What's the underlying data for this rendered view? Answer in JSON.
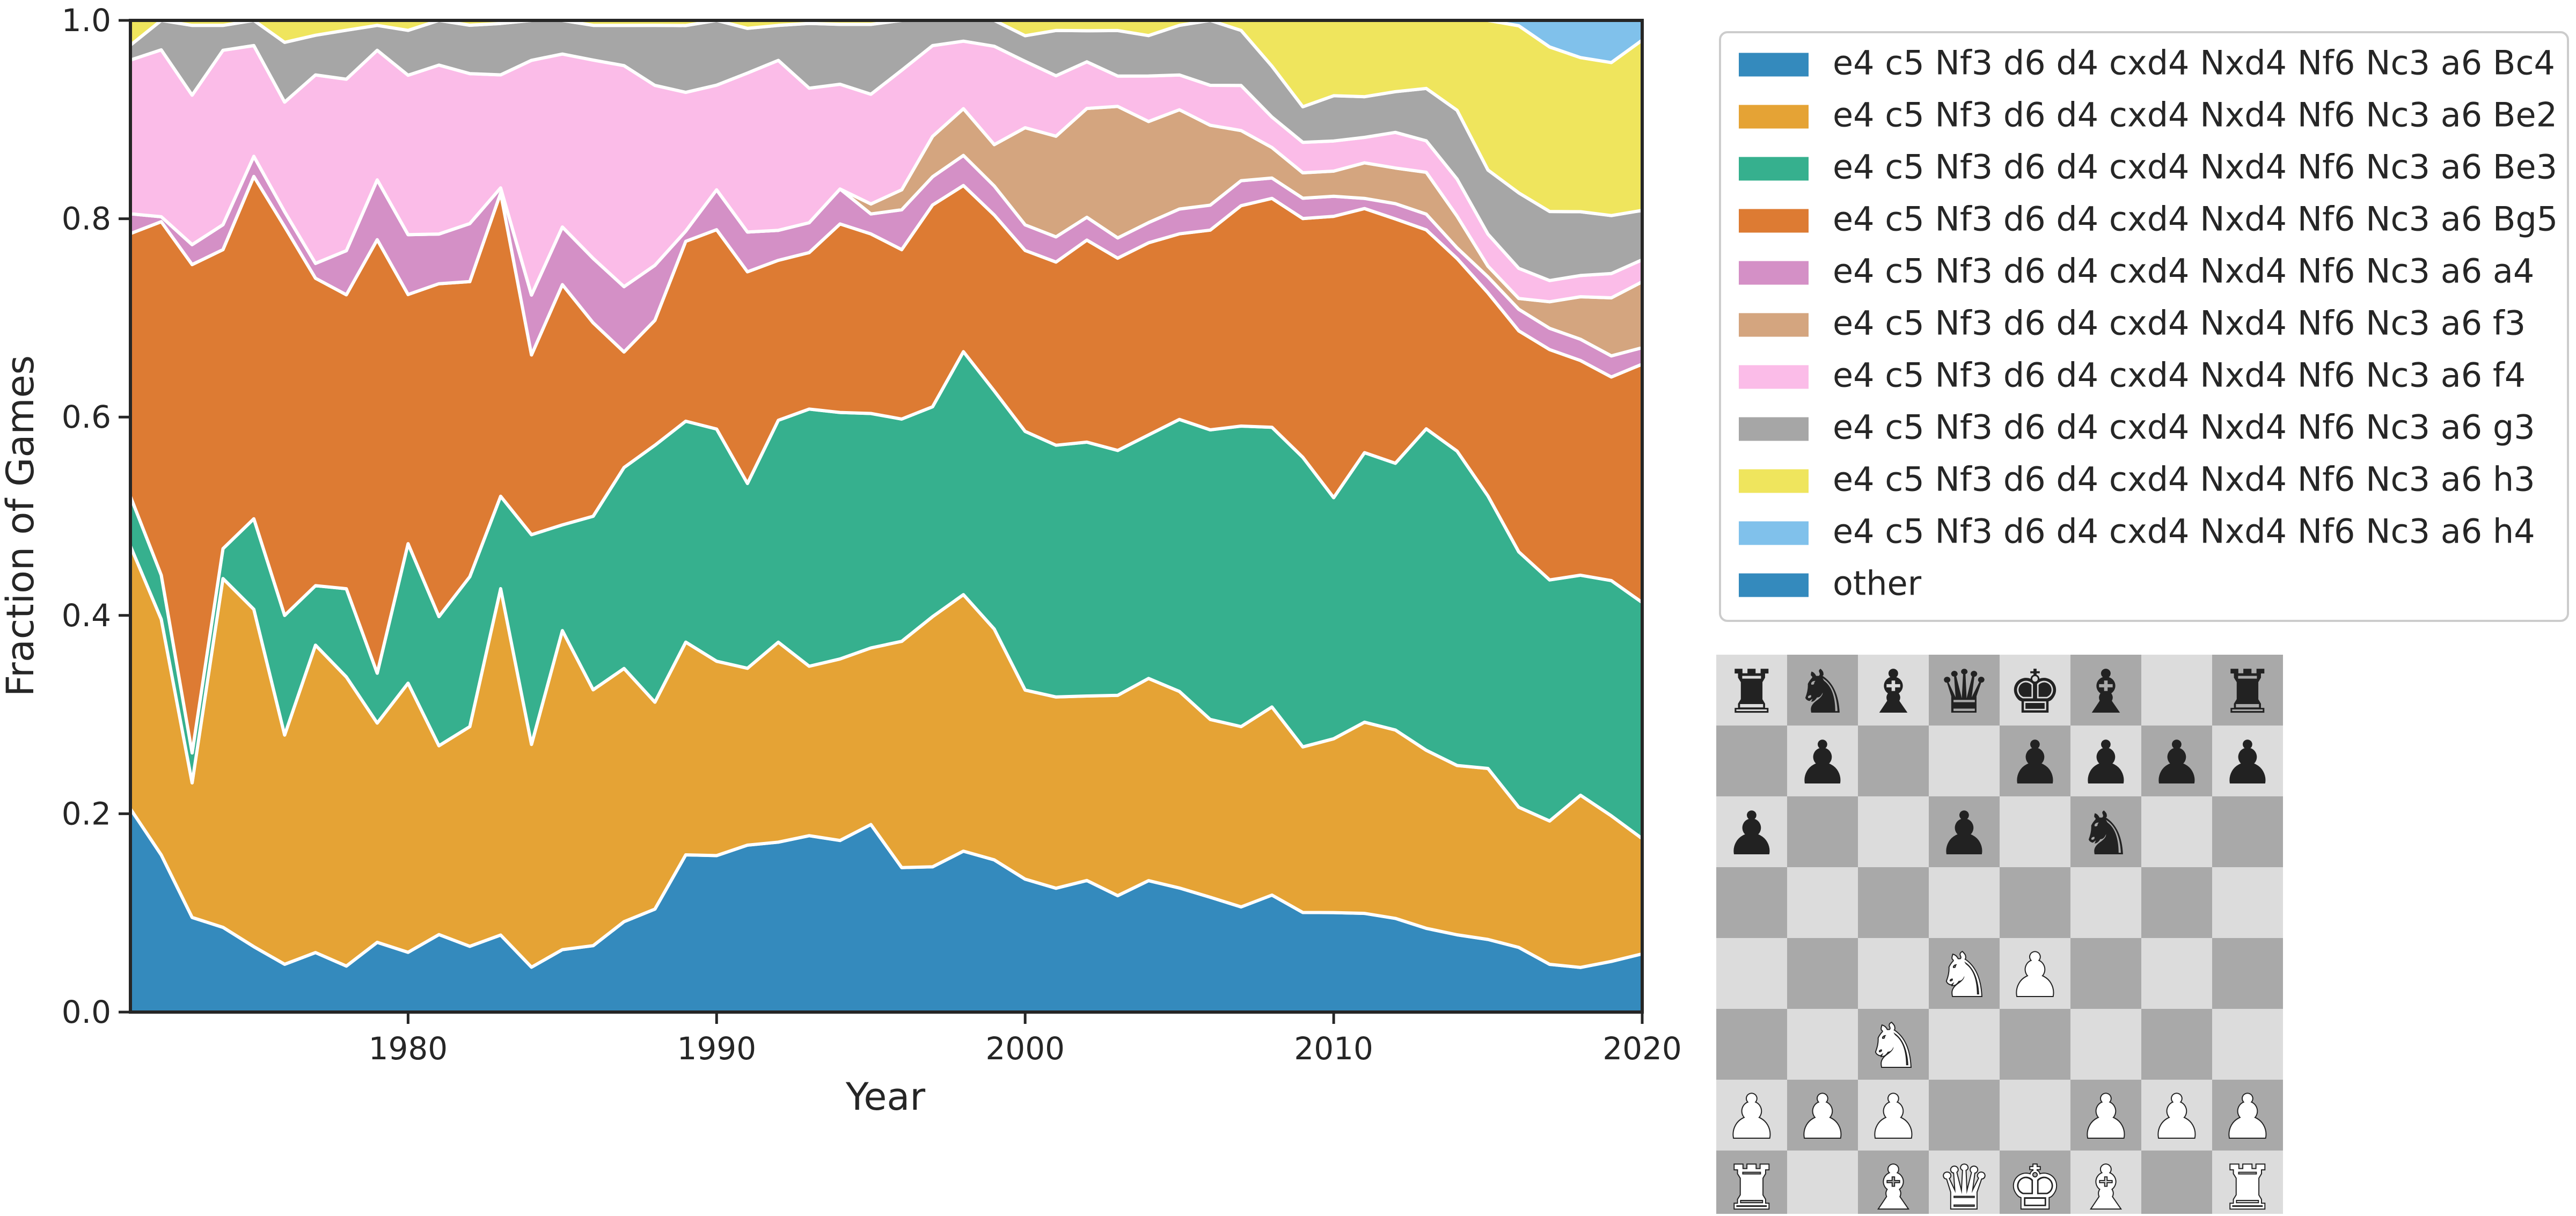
{
  "chart_data": {
    "type": "area",
    "stacked": true,
    "normalized": true,
    "xlabel": "Year",
    "ylabel": "Fraction of Games",
    "xlim": [
      1971,
      2020
    ],
    "ylim": [
      0,
      1
    ],
    "xticks": [
      1980,
      1990,
      2000,
      2010,
      2020
    ],
    "yticks": [
      "0.0",
      "0.2",
      "0.4",
      "0.6",
      "0.8",
      "1.0"
    ],
    "grid": false,
    "legend_position": "top-right, outside plot",
    "x": [
      1971,
      1972,
      1973,
      1974,
      1975,
      1976,
      1977,
      1978,
      1979,
      1980,
      1981,
      1982,
      1983,
      1984,
      1985,
      1986,
      1987,
      1988,
      1989,
      1990,
      1991,
      1992,
      1993,
      1994,
      1995,
      1996,
      1997,
      1998,
      1999,
      2000,
      2001,
      2002,
      2003,
      2004,
      2005,
      2006,
      2007,
      2008,
      2009,
      2010,
      2011,
      2012,
      2013,
      2014,
      2015,
      2016,
      2017,
      2018,
      2019,
      2020
    ],
    "series": [
      {
        "name": "e4 c5 Nf3 d6 d4 cxd4 Nxd4 Nf6 Nc3 a6 Bc4",
        "color": "#348abd",
        "values": [
          0.205,
          0.16,
          0.095,
          0.085,
          0.065,
          0.048,
          0.06,
          0.047,
          0.07,
          0.06,
          0.078,
          0.068,
          0.075,
          0.045,
          0.065,
          0.067,
          0.09,
          0.103,
          0.153,
          0.157,
          0.168,
          0.17,
          0.177,
          0.172,
          0.188,
          0.145,
          0.144,
          0.155,
          0.147,
          0.13,
          0.123,
          0.127,
          0.115,
          0.13,
          0.125,
          0.115,
          0.105,
          0.115,
          0.098,
          0.099,
          0.097,
          0.092,
          0.08,
          0.073,
          0.068,
          0.06,
          0.045,
          0.042,
          0.048,
          0.053
        ]
      },
      {
        "name": "e4 c5 Nf3 d6 d4 cxd4 Nxd4 Nf6 Nc3 a6 Be2",
        "color": "#e5a335",
        "values": [
          0.265,
          0.24,
          0.135,
          0.35,
          0.335,
          0.23,
          0.31,
          0.295,
          0.22,
          0.27,
          0.19,
          0.227,
          0.337,
          0.223,
          0.332,
          0.258,
          0.252,
          0.207,
          0.207,
          0.195,
          0.178,
          0.2,
          0.17,
          0.182,
          0.177,
          0.227,
          0.248,
          0.247,
          0.223,
          0.185,
          0.19,
          0.178,
          0.198,
          0.2,
          0.198,
          0.178,
          0.18,
          0.185,
          0.163,
          0.173,
          0.188,
          0.185,
          0.17,
          0.16,
          0.16,
          0.13,
          0.135,
          0.162,
          0.138,
          0.105
        ]
      },
      {
        "name": "e4 c5 Nf3 d6 d4 cxd4 Nxd4 Nf6 Nc3 a6 Be3",
        "color": "#36b08e",
        "values": [
          0.05,
          0.045,
          0.03,
          0.03,
          0.09,
          0.12,
          0.06,
          0.09,
          0.05,
          0.14,
          0.13,
          0.155,
          0.09,
          0.21,
          0.11,
          0.175,
          0.2,
          0.257,
          0.215,
          0.233,
          0.186,
          0.222,
          0.258,
          0.247,
          0.235,
          0.223,
          0.208,
          0.234,
          0.23,
          0.253,
          0.25,
          0.245,
          0.242,
          0.241,
          0.274,
          0.29,
          0.3,
          0.275,
          0.285,
          0.24,
          0.265,
          0.262,
          0.307,
          0.297,
          0.255,
          0.237,
          0.227,
          0.207,
          0.223,
          0.215
        ]
      },
      {
        "name": "e4 c5 Nf3 d6 d4 cxd4 Nxd4 Nf6 Nc3 a6 Bg5",
        "color": "#dd7b33",
        "values": [
          0.265,
          0.36,
          0.49,
          0.3,
          0.34,
          0.39,
          0.31,
          0.3,
          0.435,
          0.25,
          0.335,
          0.305,
          0.295,
          0.18,
          0.25,
          0.195,
          0.115,
          0.125,
          0.175,
          0.2,
          0.213,
          0.16,
          0.157,
          0.189,
          0.18,
          0.17,
          0.2,
          0.16,
          0.17,
          0.177,
          0.182,
          0.195,
          0.19,
          0.19,
          0.187,
          0.2,
          0.22,
          0.225,
          0.235,
          0.28,
          0.24,
          0.24,
          0.19,
          0.182,
          0.19,
          0.205,
          0.217,
          0.202,
          0.193,
          0.217
        ]
      },
      {
        "name": "e4 c5 Nf3 d6 d4 cxd4 Nxd4 Nf6 Nc3 a6 a4",
        "color": "#d490c6",
        "values": [
          0.02,
          0.005,
          0.02,
          0.025,
          0.02,
          0.015,
          0.015,
          0.045,
          0.06,
          0.06,
          0.05,
          0.06,
          0.005,
          0.06,
          0.06,
          0.065,
          0.065,
          0.055,
          0.01,
          0.04,
          0.04,
          0.03,
          0.03,
          0.035,
          0.02,
          0.04,
          0.028,
          0.029,
          0.028,
          0.025,
          0.025,
          0.022,
          0.02,
          0.02,
          0.025,
          0.025,
          0.025,
          0.02,
          0.02,
          0.02,
          0.01,
          0.015,
          0.015,
          0.01,
          0.015,
          0.02,
          0.02,
          0.02,
          0.02,
          0.015
        ]
      },
      {
        "name": "e4 c5 Nf3 d6 d4 cxd4 Nxd4 Nf6 Nc3 a6 f3",
        "color": "#d4a57f",
        "values": [
          0,
          0,
          0,
          0,
          0,
          0,
          0,
          0,
          0,
          0,
          0,
          0,
          0,
          0,
          0,
          0,
          0,
          0,
          0,
          0,
          0,
          0,
          0,
          0,
          0.01,
          0.02,
          0.04,
          0.045,
          0.04,
          0.095,
          0.1,
          0.105,
          0.13,
          0.1,
          0.1,
          0.08,
          0.05,
          0.03,
          0.025,
          0.025,
          0.035,
          0.035,
          0.04,
          0.03,
          0.01,
          0.01,
          0.025,
          0.04,
          0.055,
          0.06
        ]
      },
      {
        "name": "e4 c5 Nf3 d6 d4 cxd4 Nxd4 Nf6 Nc3 a6 f4",
        "color": "#fbbce8",
        "values": [
          0.155,
          0.17,
          0.15,
          0.175,
          0.11,
          0.11,
          0.19,
          0.175,
          0.13,
          0.16,
          0.17,
          0.155,
          0.11,
          0.235,
          0.18,
          0.2,
          0.22,
          0.18,
          0.135,
          0.105,
          0.16,
          0.17,
          0.135,
          0.105,
          0.11,
          0.12,
          0.09,
          0.065,
          0.095,
          0.065,
          0.06,
          0.045,
          0.03,
          0.045,
          0.035,
          0.04,
          0.045,
          0.03,
          0.03,
          0.03,
          0.025,
          0.035,
          0.03,
          0.035,
          0.03,
          0.028,
          0.02,
          0.02,
          0.023,
          0.02
        ]
      },
      {
        "name": "e4 c5 Nf3 d6 d4 cxd4 Nxd4 Nf6 Nc3 a6 g3",
        "color": "#a6a6a6",
        "values": [
          0.015,
          0.03,
          0.07,
          0.025,
          0.025,
          0.06,
          0.04,
          0.05,
          0.025,
          0.045,
          0.045,
          0.05,
          0.05,
          0.04,
          0.035,
          0.035,
          0.04,
          0.06,
          0.065,
          0.065,
          0.045,
          0.035,
          0.065,
          0.06,
          0.07,
          0.05,
          0.025,
          0.02,
          0.025,
          0.025,
          0.045,
          0.03,
          0.045,
          0.04,
          0.05,
          0.065,
          0.055,
          0.05,
          0.035,
          0.045,
          0.04,
          0.04,
          0.05,
          0.065,
          0.06,
          0.07,
          0.065,
          0.06,
          0.055,
          0.045
        ]
      },
      {
        "name": "e4 c5 Nf3 d6 d4 cxd4 Nxd4 Nf6 Nc3 a6 h3",
        "color": "#efe55d",
        "values": [
          0.025,
          0.0,
          0.005,
          0.005,
          0.0,
          0.022,
          0.015,
          0.01,
          0.005,
          0.01,
          0.0,
          0.005,
          0.003,
          0.0,
          0.0,
          0.005,
          0.005,
          0.005,
          0.005,
          0.0,
          0.008,
          0.005,
          0.003,
          0.004,
          0.004,
          0.0,
          0.0,
          0.0,
          0.0,
          0.015,
          0.01,
          0.01,
          0.01,
          0.015,
          0.005,
          0.0,
          0.01,
          0.045,
          0.085,
          0.075,
          0.075,
          0.07,
          0.065,
          0.085,
          0.14,
          0.155,
          0.155,
          0.145,
          0.145,
          0.155
        ]
      },
      {
        "name": "e4 c5 Nf3 d6 d4 cxd4 Nxd4 Nf6 Nc3 a6 h4",
        "color": "#80c1eb",
        "values": [
          0,
          0,
          0,
          0,
          0,
          0,
          0,
          0,
          0,
          0,
          0,
          0,
          0,
          0,
          0,
          0,
          0,
          0,
          0,
          0,
          0,
          0,
          0,
          0,
          0,
          0,
          0,
          0,
          0,
          0,
          0,
          0,
          0,
          0,
          0,
          0,
          0,
          0,
          0,
          0,
          0,
          0,
          0,
          0,
          0,
          0.005,
          0.025,
          0.035,
          0.04,
          0.018
        ]
      },
      {
        "name": "other",
        "color": "#348abd",
        "values": [
          0,
          0,
          0,
          0,
          0,
          0,
          0,
          0,
          0,
          0,
          0,
          0,
          0,
          0,
          0,
          0,
          0,
          0,
          0,
          0,
          0,
          0,
          0,
          0,
          0,
          0,
          0,
          0,
          0,
          0,
          0,
          0,
          0,
          0,
          0,
          0,
          0,
          0,
          0,
          0,
          0,
          0,
          0,
          0,
          0,
          0,
          0,
          0,
          0,
          0
        ]
      }
    ]
  },
  "board": {
    "ranks": [
      [
        "♜",
        "♞",
        "♝",
        "♛",
        "♚",
        "♝",
        "",
        "♜"
      ],
      [
        "",
        "♟",
        "",
        "",
        "♟",
        "♟",
        "♟",
        "♟"
      ],
      [
        "♟",
        "",
        "",
        "♟",
        "",
        "♞",
        "",
        ""
      ],
      [
        "",
        "",
        "",
        "",
        "",
        "",
        "",
        ""
      ],
      [
        "",
        "",
        "",
        "♘",
        "♙",
        "",
        "",
        ""
      ],
      [
        "",
        "",
        "♘",
        "",
        "",
        "",
        "",
        ""
      ],
      [
        "♙",
        "♙",
        "♙",
        "",
        "",
        "♙",
        "♙",
        "♙"
      ],
      [
        "♖",
        "",
        "♗",
        "♕",
        "♔",
        "♗",
        "",
        "♖"
      ]
    ],
    "colors": {
      "dark_square": "#a9a9a9",
      "light_square": "#dcdcdc",
      "dark_piece": "#222222",
      "light_piece": "#ffffff"
    },
    "pieces": {
      "white": [
        "rook",
        "knight",
        "bishop",
        "queen",
        "king",
        "pawn"
      ],
      "black": [
        "rook",
        "knight",
        "bishop",
        "queen",
        "king",
        "pawn"
      ]
    }
  }
}
